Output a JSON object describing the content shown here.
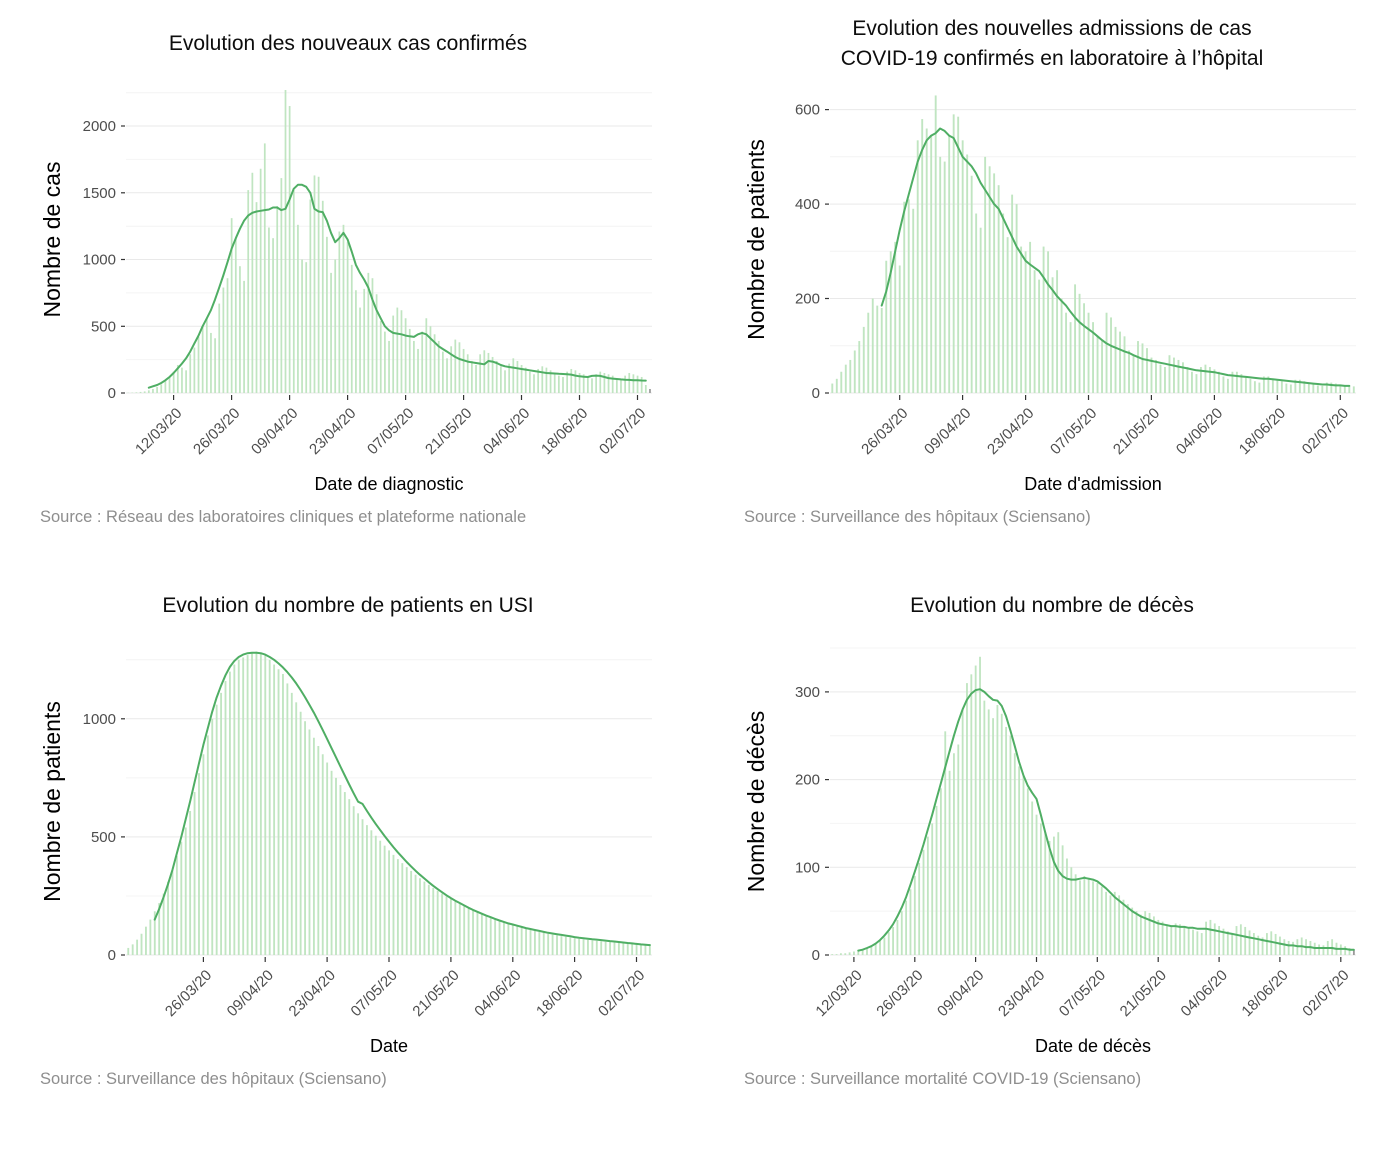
{
  "colors": {
    "bar_fill": "#c0e5c1",
    "muted_bar": "#9b9b9b",
    "line": "#4fae64",
    "grid_major": "#e9e9e9",
    "grid_minor": "#f4f4f4",
    "axis_text": "#4d4d4d",
    "tick_mark": "#333333",
    "title_text": "#000000",
    "source_text": "#8e8e8e"
  },
  "chart_data": [
    {
      "type": "bar+line",
      "title": "Evolution des nouveaux cas confirmés",
      "xlabel": "Date de diagnostic",
      "ylabel": "Nombre de cas",
      "source": "Source : Réseau des laboratoires cliniques et plateforme nationale",
      "y_ticks": [
        0,
        500,
        1000,
        1500,
        2000
      ],
      "y_minor_step": 250,
      "y_max": 2300,
      "x_tick_labels": [
        "12/03/20",
        "26/03/20",
        "09/04/20",
        "23/04/20",
        "07/05/20",
        "21/05/20",
        "04/06/20",
        "18/06/20",
        "02/07/20"
      ],
      "first_tick_day": 11,
      "tick_interval_days": 14,
      "start_date": "01/03/20",
      "last_bar_muted": true,
      "bars": [
        2,
        3,
        5,
        8,
        12,
        20,
        30,
        45,
        65,
        90,
        120,
        160,
        210,
        190,
        170,
        290,
        340,
        420,
        500,
        560,
        450,
        410,
        670,
        790,
        860,
        1310,
        1160,
        950,
        840,
        1520,
        1650,
        1430,
        1680,
        1870,
        1240,
        1160,
        1400,
        1610,
        2270,
        2150,
        1520,
        1260,
        1000,
        980,
        1450,
        1630,
        1620,
        1440,
        1170,
        900,
        1000,
        1210,
        1260,
        1130,
        960,
        770,
        640,
        780,
        900,
        860,
        740,
        540,
        460,
        390,
        580,
        640,
        620,
        560,
        480,
        390,
        330,
        460,
        560,
        500,
        440,
        390,
        310,
        260,
        350,
        400,
        380,
        330,
        290,
        240,
        210,
        290,
        320,
        300,
        270,
        240,
        200,
        170,
        220,
        260,
        240,
        210,
        190,
        160,
        140,
        180,
        200,
        190,
        170,
        150,
        130,
        120,
        160,
        180,
        170,
        150,
        140,
        120,
        110,
        140,
        160,
        150,
        140,
        130,
        110,
        100,
        130,
        150,
        140,
        130,
        120,
        60,
        30
      ],
      "line": [
        null,
        null,
        null,
        null,
        null,
        40,
        50,
        60,
        75,
        95,
        120,
        150,
        185,
        220,
        260,
        310,
        370,
        430,
        500,
        560,
        620,
        700,
        790,
        880,
        980,
        1080,
        1160,
        1230,
        1290,
        1330,
        1350,
        1360,
        1365,
        1370,
        1375,
        1390,
        1390,
        1370,
        1380,
        1450,
        1530,
        1560,
        1560,
        1545,
        1500,
        1380,
        1360,
        1355,
        1290,
        1200,
        1130,
        1160,
        1200,
        1150,
        1060,
        960,
        900,
        850,
        790,
        700,
        620,
        560,
        500,
        470,
        450,
        445,
        440,
        430,
        425,
        420,
        440,
        450,
        440,
        410,
        380,
        350,
        330,
        310,
        290,
        270,
        255,
        245,
        235,
        230,
        225,
        220,
        215,
        240,
        235,
        225,
        210,
        200,
        195,
        190,
        185,
        180,
        175,
        170,
        165,
        160,
        155,
        150,
        148,
        146,
        144,
        142,
        140,
        138,
        130,
        125,
        122,
        120,
        128,
        130,
        128,
        120,
        112,
        108,
        105,
        102,
        100,
        98,
        96,
        95,
        94,
        93,
        null
      ]
    },
    {
      "type": "bar+line",
      "title": "Evolution des nouvelles admissions de cas\nCOVID-19 confirmés en laboratoire à l’hôpital",
      "xlabel": "Date d'admission",
      "ylabel": "Nombre de patients",
      "source": "Source : Surveillance des hôpitaux (Sciensano)",
      "y_ticks": [
        0,
        200,
        400,
        600
      ],
      "y_minor_step": 100,
      "y_max": 650,
      "x_tick_labels": [
        "26/03/20",
        "09/04/20",
        "23/04/20",
        "07/05/20",
        "21/05/20",
        "04/06/20",
        "18/06/20",
        "02/07/20"
      ],
      "first_tick_day": 15,
      "tick_interval_days": 14,
      "start_date": "11/03/20",
      "last_bar_muted": false,
      "bars": [
        20,
        30,
        45,
        60,
        70,
        90,
        110,
        140,
        170,
        200,
        185,
        180,
        280,
        300,
        320,
        270,
        405,
        410,
        390,
        535,
        580,
        560,
        545,
        630,
        500,
        490,
        545,
        590,
        585,
        535,
        505,
        460,
        380,
        350,
        500,
        480,
        465,
        440,
        380,
        330,
        420,
        400,
        310,
        300,
        320,
        260,
        240,
        310,
        300,
        245,
        260,
        200,
        170,
        150,
        230,
        210,
        190,
        170,
        150,
        120,
        110,
        170,
        160,
        140,
        130,
        120,
        90,
        80,
        110,
        105,
        95,
        75,
        70,
        60,
        55,
        80,
        75,
        70,
        65,
        55,
        45,
        40,
        55,
        60,
        55,
        50,
        45,
        35,
        30,
        45,
        45,
        40,
        35,
        30,
        25,
        22,
        35,
        35,
        30,
        28,
        25,
        20,
        18,
        28,
        28,
        25,
        22,
        20,
        16,
        15,
        22,
        22,
        20,
        18,
        16,
        15,
        14
      ],
      "line": [
        null,
        null,
        null,
        null,
        null,
        null,
        null,
        null,
        null,
        null,
        null,
        185,
        215,
        255,
        300,
        345,
        385,
        420,
        455,
        490,
        515,
        535,
        545,
        550,
        560,
        555,
        545,
        540,
        520,
        500,
        490,
        480,
        465,
        445,
        430,
        415,
        400,
        390,
        370,
        350,
        330,
        310,
        295,
        280,
        272,
        265,
        258,
        245,
        230,
        218,
        205,
        195,
        185,
        172,
        160,
        150,
        142,
        135,
        128,
        120,
        112,
        105,
        100,
        96,
        92,
        88,
        85,
        80,
        76,
        72,
        70,
        68,
        66,
        64,
        62,
        60,
        58,
        56,
        54,
        52,
        50,
        48,
        47,
        46,
        45,
        44,
        42,
        40,
        38,
        37,
        36,
        35,
        34,
        33,
        32,
        31,
        30,
        30,
        29,
        28,
        27,
        26,
        25,
        24,
        23,
        22,
        21,
        20,
        19,
        18,
        18,
        17,
        16,
        16,
        15,
        15,
        null
      ]
    },
    {
      "type": "bar+line",
      "title": "Evolution du nombre de patients en USI",
      "xlabel": "Date",
      "ylabel": "Nombre de patients",
      "source": "Source : Surveillance des hôpitaux (Sciensano)",
      "y_ticks": [
        0,
        500,
        1000
      ],
      "y_minor_step": 250,
      "y_max": 1300,
      "x_tick_labels": [
        "26/03/20",
        "09/04/20",
        "23/04/20",
        "07/05/20",
        "21/05/20",
        "04/06/20",
        "18/06/20",
        "02/07/20"
      ],
      "first_tick_day": 17,
      "tick_interval_days": 14,
      "start_date": "09/03/20",
      "last_bar_muted": false,
      "bars": [
        30,
        45,
        65,
        90,
        120,
        150,
        185,
        220,
        260,
        310,
        360,
        420,
        480,
        540,
        610,
        690,
        770,
        850,
        930,
        1000,
        1060,
        1110,
        1160,
        1200,
        1230,
        1250,
        1260,
        1270,
        1280,
        1285,
        1280,
        1270,
        1250,
        1230,
        1210,
        1190,
        1150,
        1110,
        1070,
        1030,
        990,
        955,
        920,
        885,
        850,
        815,
        780,
        750,
        720,
        690,
        660,
        630,
        600,
        575,
        550,
        528,
        505,
        484,
        463,
        443,
        424,
        406,
        389,
        372,
        356,
        340,
        325,
        311,
        297,
        284,
        272,
        260,
        248,
        237,
        227,
        217,
        207,
        198,
        189,
        181,
        173,
        165,
        158,
        151,
        144,
        138,
        132,
        126,
        121,
        116,
        111,
        106,
        102,
        98,
        94,
        90,
        86,
        83,
        80,
        77,
        74,
        71,
        68,
        66,
        64,
        62,
        60,
        58,
        56,
        55,
        54,
        53,
        52,
        51,
        50,
        49,
        48,
        47,
        46
      ],
      "line": [
        null,
        null,
        null,
        null,
        null,
        null,
        150,
        195,
        245,
        300,
        360,
        430,
        500,
        575,
        650,
        730,
        810,
        890,
        960,
        1030,
        1090,
        1140,
        1185,
        1220,
        1245,
        1262,
        1272,
        1278,
        1280,
        1280,
        1278,
        1272,
        1262,
        1250,
        1235,
        1218,
        1198,
        1175,
        1150,
        1122,
        1092,
        1060,
        1026,
        990,
        953,
        915,
        876,
        837,
        798,
        760,
        722,
        685,
        649,
        640,
        610,
        582,
        555,
        529,
        504,
        480,
        457,
        435,
        414,
        394,
        375,
        357,
        340,
        324,
        308,
        293,
        279,
        266,
        253,
        241,
        230,
        220,
        210,
        200,
        191,
        183,
        175,
        167,
        160,
        153,
        146,
        140,
        134,
        129,
        124,
        119,
        114,
        110,
        106,
        102,
        98,
        94,
        91,
        88,
        85,
        82,
        79,
        76,
        73,
        71,
        69,
        67,
        65,
        63,
        61,
        59,
        57,
        55,
        53,
        51,
        49,
        47,
        45,
        43,
        42
      ]
    },
    {
      "type": "bar+line",
      "title": "Evolution du nombre de décès",
      "xlabel": "Date de décès",
      "ylabel": "Nombre de décès",
      "source": "Source : Surveillance mortalité COVID-19 (Sciensano)",
      "y_ticks": [
        0,
        100,
        200,
        300
      ],
      "y_minor_step": 50,
      "y_max": 350,
      "x_tick_labels": [
        "12/03/20",
        "26/03/20",
        "09/04/20",
        "23/04/20",
        "07/05/20",
        "21/05/20",
        "04/06/20",
        "18/06/20",
        "02/07/20"
      ],
      "first_tick_day": 5,
      "tick_interval_days": 14,
      "start_date": "07/03/20",
      "last_bar_muted": true,
      "bars": [
        1,
        1,
        2,
        2,
        3,
        4,
        5,
        6,
        8,
        10,
        13,
        16,
        20,
        26,
        32,
        40,
        50,
        62,
        75,
        90,
        105,
        120,
        135,
        150,
        170,
        190,
        255,
        210,
        230,
        240,
        280,
        310,
        320,
        330,
        340,
        290,
        280,
        270,
        285,
        275,
        260,
        250,
        230,
        215,
        205,
        190,
        175,
        160,
        150,
        140,
        130,
        135,
        140,
        125,
        110,
        100,
        92,
        85,
        90,
        88,
        84,
        82,
        78,
        72,
        68,
        72,
        68,
        63,
        58,
        54,
        50,
        46,
        50,
        48,
        44,
        40,
        38,
        35,
        33,
        36,
        35,
        33,
        31,
        29,
        27,
        25,
        38,
        40,
        36,
        33,
        30,
        27,
        25,
        33,
        35,
        32,
        28,
        25,
        22,
        20,
        25,
        27,
        24,
        21,
        18,
        16,
        15,
        18,
        20,
        18,
        16,
        14,
        12,
        11,
        16,
        18,
        14,
        12,
        10,
        8,
        6
      ],
      "line": [
        null,
        null,
        null,
        null,
        null,
        null,
        5,
        6,
        8,
        10,
        13,
        17,
        22,
        28,
        35,
        44,
        54,
        66,
        80,
        95,
        110,
        126,
        143,
        160,
        178,
        196,
        214,
        232,
        250,
        266,
        280,
        291,
        298,
        302,
        303,
        300,
        295,
        291,
        290,
        284,
        272,
        256,
        238,
        220,
        205,
        193,
        185,
        178,
        160,
        140,
        122,
        106,
        96,
        90,
        87,
        86,
        86,
        87,
        88,
        87,
        86,
        84,
        80,
        76,
        71,
        66,
        62,
        58,
        54,
        50,
        47,
        44,
        42,
        40,
        38,
        36,
        35,
        34,
        33,
        33,
        32,
        32,
        31,
        31,
        30,
        30,
        30,
        29,
        28,
        27,
        26,
        25,
        24,
        23,
        22,
        21,
        20,
        19,
        18,
        17,
        16,
        15,
        14,
        13,
        12,
        11,
        11,
        10,
        10,
        9,
        9,
        8,
        8,
        8,
        8,
        8,
        7,
        7,
        7,
        6,
        6
      ]
    }
  ]
}
